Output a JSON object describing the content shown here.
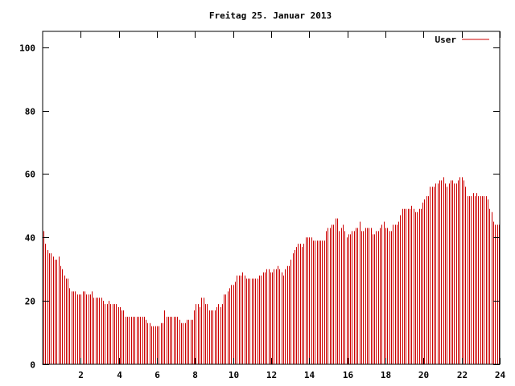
{
  "chart_data": {
    "type": "bar",
    "title": "Freitag 25. Januar 2013",
    "xlabel": "",
    "ylabel": "",
    "xlim": [
      0,
      24
    ],
    "ylim": [
      0,
      105
    ],
    "x_ticks": [
      2,
      4,
      6,
      8,
      10,
      12,
      14,
      16,
      18,
      20,
      22,
      24
    ],
    "x_tick_labels": [
      "2",
      "4",
      "6",
      "8",
      "10",
      "12",
      "14",
      "16",
      "18",
      "20",
      "22",
      "24"
    ],
    "y_ticks": [
      0,
      20,
      40,
      60,
      80,
      100
    ],
    "y_tick_labels": [
      "0",
      "20",
      "40",
      "60",
      "80",
      "100"
    ],
    "grid": false,
    "legend": {
      "position": "top-right",
      "entries": [
        {
          "label": "User",
          "color": "#cc0000"
        }
      ]
    },
    "series": [
      {
        "name": "User",
        "color": "#cc0000",
        "x_start": 0,
        "x_step": 0.0833,
        "values": [
          42,
          38,
          36,
          35,
          35,
          34,
          33,
          33,
          34,
          31,
          30,
          28,
          27,
          27,
          24,
          23,
          23,
          23,
          22,
          22,
          22,
          23,
          23,
          22,
          22,
          22,
          23,
          21,
          21,
          21,
          21,
          21,
          20,
          19,
          19,
          20,
          19,
          19,
          19,
          19,
          18,
          18,
          17,
          17,
          15,
          15,
          15,
          15,
          15,
          15,
          15,
          15,
          15,
          15,
          15,
          14,
          13,
          13,
          12,
          12,
          12,
          12,
          12,
          13,
          13,
          17,
          15,
          15,
          15,
          15,
          15,
          15,
          15,
          14,
          13,
          13,
          13,
          14,
          14,
          14,
          14,
          17,
          19,
          19,
          18,
          21,
          21,
          19,
          19,
          17,
          17,
          17,
          17,
          18,
          19,
          18,
          19,
          22,
          22,
          23,
          24,
          25,
          25,
          26,
          28,
          28,
          28,
          29,
          28,
          27,
          27,
          27,
          27,
          27,
          27,
          27,
          28,
          28,
          29,
          29,
          30,
          30,
          29,
          29,
          30,
          30,
          31,
          30,
          29,
          28,
          30,
          31,
          31,
          33,
          35,
          36,
          37,
          38,
          38,
          37,
          38,
          40,
          40,
          40,
          40,
          39,
          39,
          39,
          39,
          39,
          39,
          39,
          42,
          43,
          43,
          44,
          44,
          46,
          46,
          42,
          43,
          44,
          42,
          40,
          41,
          41,
          42,
          42,
          43,
          43,
          45,
          42,
          42,
          43,
          43,
          43,
          43,
          41,
          41,
          42,
          42,
          43,
          44,
          45,
          43,
          43,
          42,
          42,
          44,
          44,
          44,
          45,
          47,
          49,
          49,
          49,
          49,
          49,
          50,
          49,
          48,
          48,
          49,
          49,
          51,
          52,
          53,
          53,
          56,
          56,
          56,
          57,
          57,
          58,
          58,
          59,
          57,
          56,
          57,
          58,
          58,
          57,
          57,
          58,
          59,
          59,
          58,
          56,
          53,
          53,
          53,
          54,
          53,
          54,
          53,
          53,
          53,
          53,
          53,
          52,
          49,
          48,
          45,
          44,
          44,
          44
        ]
      }
    ]
  }
}
